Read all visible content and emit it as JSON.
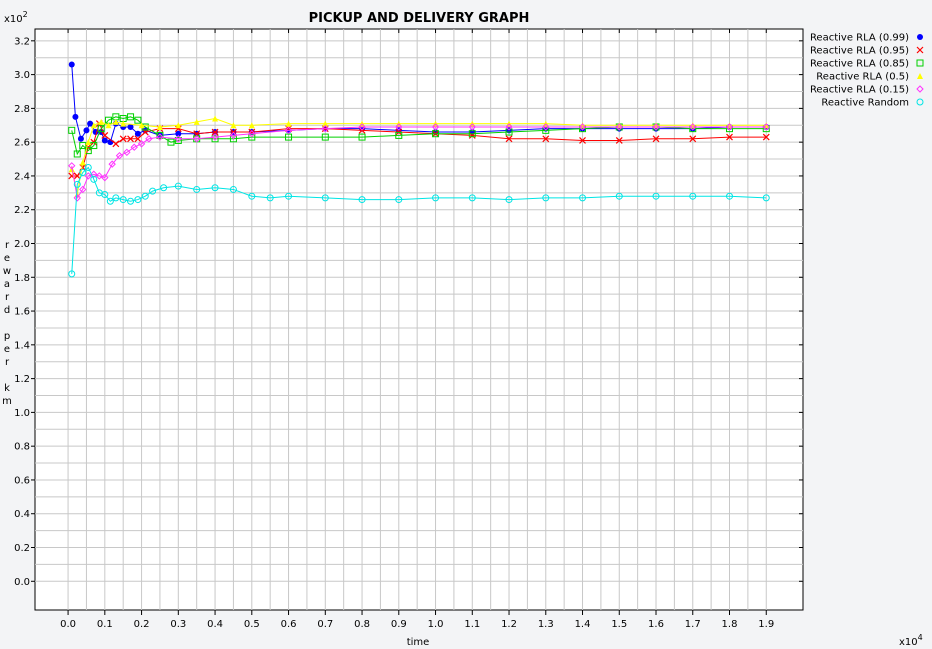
{
  "chart_data": {
    "type": "scatter",
    "title": "PICKUP AND DELIVERY GRAPH",
    "xlabel": "time",
    "ylabel": "reward per km",
    "x_multiplier": "x10",
    "x_multiplier_exp": "4",
    "y_multiplier": "x10",
    "y_multiplier_exp": "2",
    "xlim": [
      -0.09,
      2.0
    ],
    "ylim": [
      -0.17,
      3.27
    ],
    "grid": true,
    "legend_position": "top-right",
    "x_ticks": [
      "0.0",
      "0.1",
      "0.2",
      "0.3",
      "0.4",
      "0.5",
      "0.6",
      "0.7",
      "0.8",
      "0.9",
      "1.0",
      "1.1",
      "1.2",
      "1.3",
      "1.4",
      "1.5",
      "1.6",
      "1.7",
      "1.8",
      "1.9"
    ],
    "y_ticks": [
      "0.0",
      "0.2",
      "0.4",
      "0.6",
      "0.8",
      "1.0",
      "1.2",
      "1.4",
      "1.6",
      "1.8",
      "2.0",
      "2.2",
      "2.4",
      "2.6",
      "2.8",
      "3.0",
      "3.2"
    ],
    "series": [
      {
        "name": "Reactive RLA (0.99)",
        "color": "#0000ff",
        "marker": "filled-circle",
        "x": [
          0.01,
          0.02,
          0.035,
          0.05,
          0.06,
          0.075,
          0.09,
          0.1,
          0.115,
          0.13,
          0.15,
          0.17,
          0.19,
          0.21,
          0.25,
          0.3,
          0.35,
          0.4,
          0.45,
          0.5,
          0.6,
          0.7,
          0.8,
          0.9,
          1.0,
          1.1,
          1.2,
          1.3,
          1.4,
          1.5,
          1.6,
          1.7,
          1.8,
          1.9
        ],
        "y": [
          3.06,
          2.75,
          2.62,
          2.67,
          2.71,
          2.66,
          2.66,
          2.61,
          2.6,
          2.71,
          2.69,
          2.69,
          2.65,
          2.67,
          2.64,
          2.65,
          2.65,
          2.66,
          2.66,
          2.66,
          2.67,
          2.68,
          2.68,
          2.67,
          2.66,
          2.66,
          2.67,
          2.68,
          2.68,
          2.68,
          2.68,
          2.68,
          2.69,
          2.69
        ]
      },
      {
        "name": "Reactive RLA (0.95)",
        "color": "#ff0000",
        "marker": "x",
        "x": [
          0.01,
          0.025,
          0.04,
          0.055,
          0.07,
          0.085,
          0.1,
          0.13,
          0.15,
          0.17,
          0.19,
          0.21,
          0.25,
          0.3,
          0.35,
          0.4,
          0.45,
          0.5,
          0.6,
          0.7,
          0.8,
          0.9,
          1.0,
          1.1,
          1.2,
          1.3,
          1.4,
          1.5,
          1.6,
          1.7,
          1.8,
          1.9
        ],
        "y": [
          2.4,
          2.4,
          2.45,
          2.57,
          2.6,
          2.71,
          2.64,
          2.59,
          2.62,
          2.62,
          2.62,
          2.66,
          2.68,
          2.68,
          2.65,
          2.66,
          2.66,
          2.66,
          2.68,
          2.68,
          2.67,
          2.66,
          2.65,
          2.64,
          2.62,
          2.62,
          2.61,
          2.61,
          2.62,
          2.62,
          2.63,
          2.63
        ]
      },
      {
        "name": "Reactive RLA (0.85)",
        "color": "#00d000",
        "marker": "open-square",
        "x": [
          0.01,
          0.025,
          0.04,
          0.055,
          0.07,
          0.09,
          0.11,
          0.13,
          0.15,
          0.17,
          0.19,
          0.21,
          0.25,
          0.28,
          0.3,
          0.35,
          0.4,
          0.45,
          0.5,
          0.6,
          0.7,
          0.8,
          0.9,
          1.0,
          1.1,
          1.2,
          1.3,
          1.4,
          1.5,
          1.6,
          1.7,
          1.8,
          1.9
        ],
        "y": [
          2.67,
          2.53,
          2.58,
          2.55,
          2.58,
          2.68,
          2.73,
          2.75,
          2.74,
          2.75,
          2.73,
          2.69,
          2.64,
          2.6,
          2.61,
          2.62,
          2.62,
          2.62,
          2.63,
          2.63,
          2.63,
          2.63,
          2.64,
          2.65,
          2.65,
          2.66,
          2.67,
          2.68,
          2.69,
          2.69,
          2.68,
          2.68,
          2.68
        ]
      },
      {
        "name": "Reactive RLA (0.5)",
        "color": "#ffff00",
        "marker": "filled-triangle",
        "x": [
          0.01,
          0.025,
          0.04,
          0.055,
          0.07,
          0.09,
          0.11,
          0.13,
          0.15,
          0.2,
          0.25,
          0.3,
          0.35,
          0.4,
          0.45,
          0.5,
          0.6,
          0.7,
          0.8,
          0.9,
          1.0,
          1.1,
          1.2,
          1.3,
          1.4,
          1.5,
          1.6,
          1.7,
          1.8,
          1.9
        ],
        "y": [
          2.44,
          2.29,
          2.48,
          2.6,
          2.7,
          2.72,
          2.7,
          2.72,
          2.71,
          2.7,
          2.69,
          2.7,
          2.72,
          2.74,
          2.7,
          2.7,
          2.71,
          2.71,
          2.71,
          2.71,
          2.71,
          2.71,
          2.71,
          2.71,
          2.7,
          2.7,
          2.7,
          2.7,
          2.7,
          2.7
        ]
      },
      {
        "name": "Reactive RLA (0.15)",
        "color": "#ff33ff",
        "marker": "open-diamond",
        "x": [
          0.01,
          0.025,
          0.04,
          0.055,
          0.07,
          0.085,
          0.1,
          0.12,
          0.14,
          0.16,
          0.18,
          0.2,
          0.22,
          0.25,
          0.3,
          0.35,
          0.4,
          0.45,
          0.5,
          0.6,
          0.7,
          0.8,
          0.9,
          1.0,
          1.1,
          1.2,
          1.3,
          1.4,
          1.5,
          1.6,
          1.7,
          1.8,
          1.9
        ],
        "y": [
          2.46,
          2.27,
          2.32,
          2.4,
          2.41,
          2.4,
          2.39,
          2.47,
          2.52,
          2.54,
          2.57,
          2.59,
          2.62,
          2.63,
          2.62,
          2.62,
          2.63,
          2.64,
          2.65,
          2.67,
          2.68,
          2.69,
          2.69,
          2.69,
          2.69,
          2.69,
          2.69,
          2.69,
          2.69,
          2.69,
          2.69,
          2.69,
          2.69
        ]
      },
      {
        "name": "Reactive Random",
        "color": "#00e5e5",
        "marker": "open-circle",
        "x": [
          0.01,
          0.025,
          0.04,
          0.055,
          0.07,
          0.085,
          0.1,
          0.115,
          0.13,
          0.15,
          0.17,
          0.19,
          0.21,
          0.23,
          0.26,
          0.3,
          0.35,
          0.4,
          0.45,
          0.5,
          0.55,
          0.6,
          0.7,
          0.8,
          0.9,
          1.0,
          1.1,
          1.2,
          1.3,
          1.4,
          1.5,
          1.6,
          1.7,
          1.8,
          1.9
        ],
        "y": [
          1.82,
          2.35,
          2.42,
          2.45,
          2.38,
          2.3,
          2.29,
          2.25,
          2.27,
          2.26,
          2.25,
          2.26,
          2.28,
          2.31,
          2.33,
          2.34,
          2.32,
          2.33,
          2.32,
          2.28,
          2.27,
          2.28,
          2.27,
          2.26,
          2.26,
          2.27,
          2.27,
          2.26,
          2.27,
          2.27,
          2.28,
          2.28,
          2.28,
          2.28,
          2.27
        ]
      }
    ]
  }
}
